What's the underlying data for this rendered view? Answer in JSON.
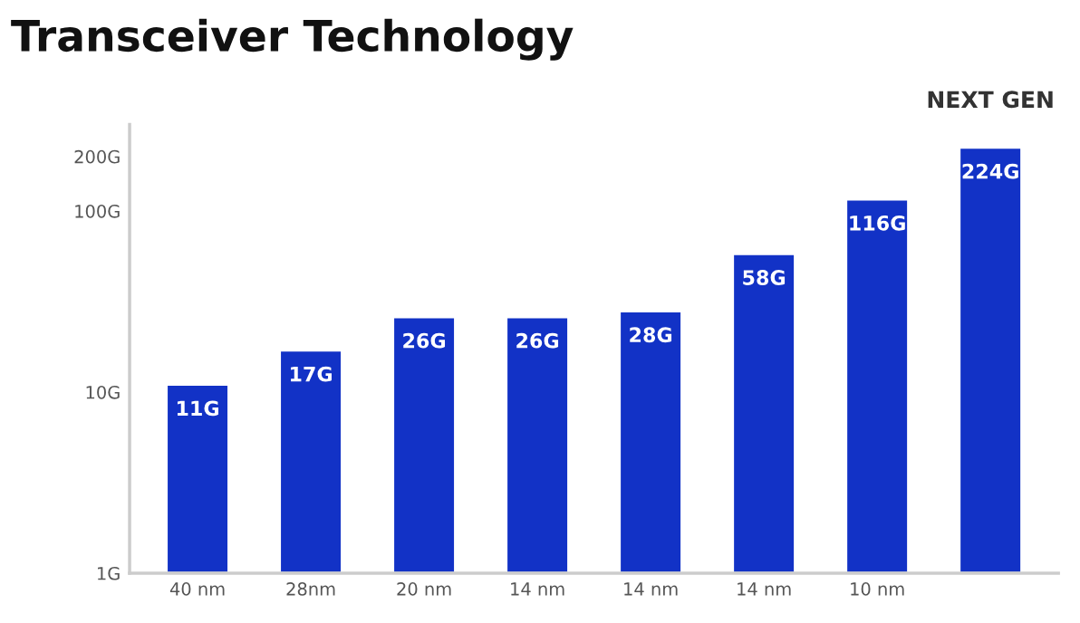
{
  "chart_data": {
    "type": "bar",
    "title": "Transceiver Technology",
    "categories": [
      "40 nm",
      "28nm",
      "20 nm",
      "14 nm",
      "14 nm",
      "14 nm",
      "10 nm",
      null
    ],
    "values": [
      11,
      17,
      26,
      26,
      28,
      58,
      116,
      224
    ],
    "value_labels": [
      "11G",
      "17G",
      "26G",
      "26G",
      "28G",
      "58G",
      "116G",
      "224G"
    ],
    "color": "#1232c6",
    "log": true,
    "ylim": [
      1,
      300
    ],
    "yticks": [
      {
        "value": 1,
        "label": "1G"
      },
      {
        "value": 10,
        "label": "10G"
      },
      {
        "value": 100,
        "label": "100G"
      },
      {
        "value": 200,
        "label": "200G"
      }
    ],
    "annotations": [
      {
        "text": "NEXT GEN",
        "y": 224
      }
    ],
    "grid": false,
    "legend": false
  }
}
